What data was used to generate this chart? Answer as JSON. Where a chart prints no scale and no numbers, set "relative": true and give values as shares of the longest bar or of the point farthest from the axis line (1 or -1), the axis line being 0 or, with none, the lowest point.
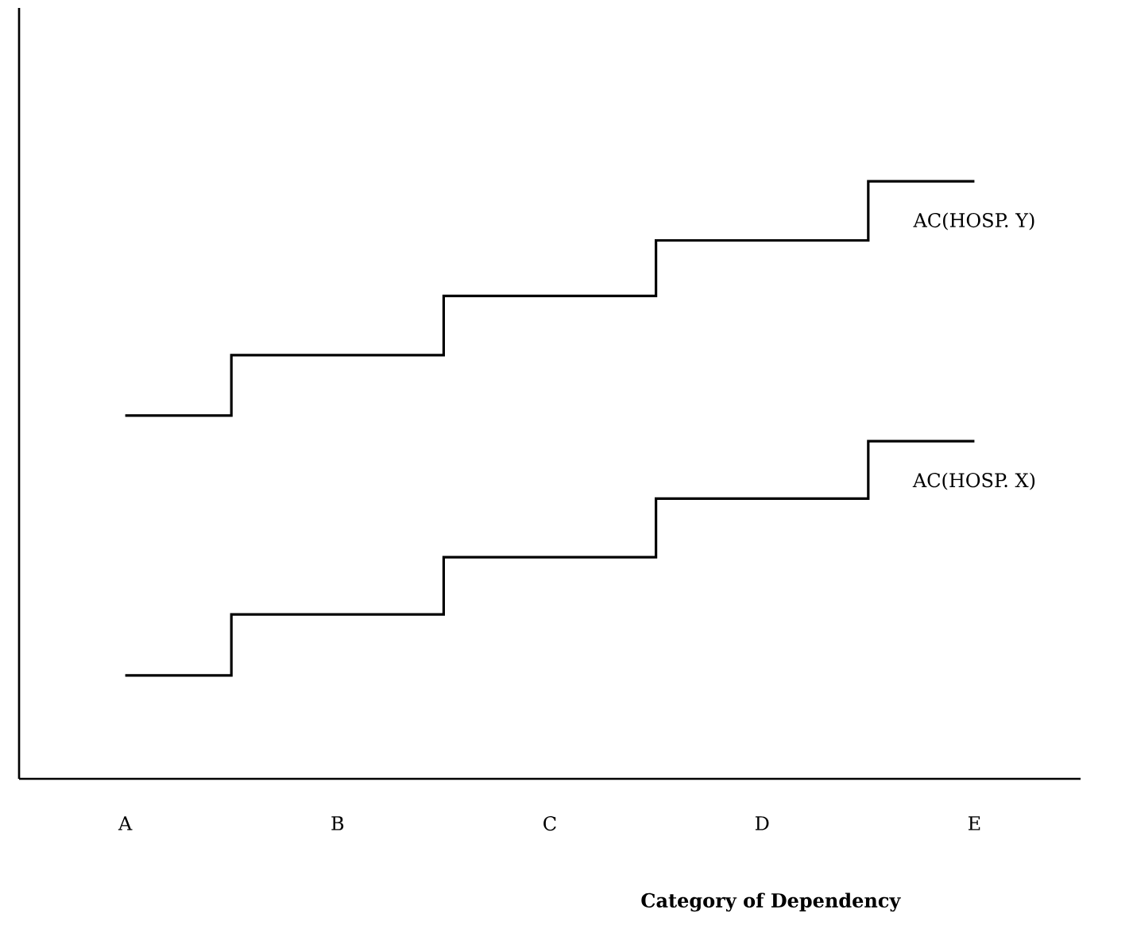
{
  "chart_data": {
    "type": "step",
    "relative": true,
    "xlabel": "Category of Dependency",
    "categories": [
      "A",
      "B",
      "C",
      "D",
      "E"
    ],
    "series": [
      {
        "name": "AC(HOSP. Y)",
        "color": "#000000",
        "values": [
          0.608,
          0.709,
          0.808,
          0.901,
          1.0
        ]
      },
      {
        "name": "AC(HOSP. X)",
        "color": "#000000",
        "values": [
          0.173,
          0.275,
          0.371,
          0.469,
          0.565
        ]
      }
    ],
    "legend": false,
    "grid": false
  }
}
